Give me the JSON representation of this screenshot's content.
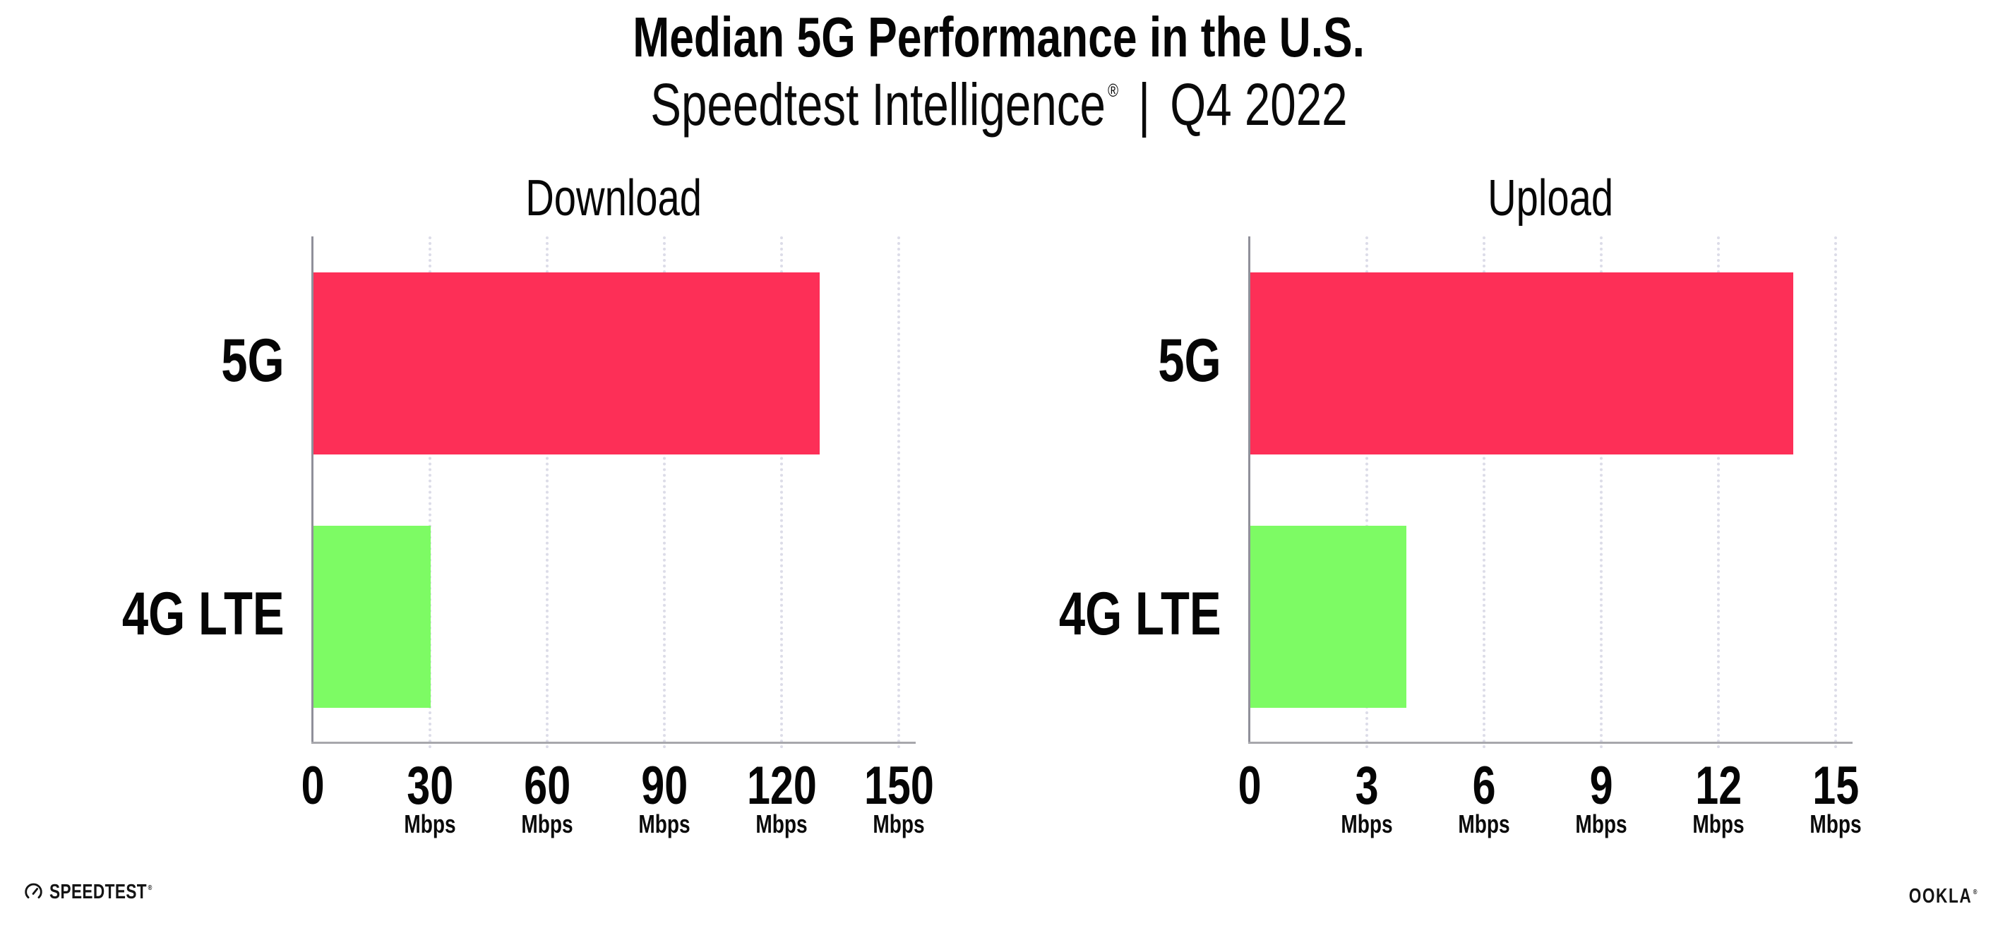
{
  "header": {
    "title": "Median 5G Performance in the U.S.",
    "subtitle_brand": "Speedtest Intelligence",
    "subtitle_reg": "®",
    "subtitle_separator": "|",
    "subtitle_period": "Q4 2022"
  },
  "chart_data": [
    {
      "type": "bar",
      "orientation": "horizontal",
      "title": "Download",
      "categories": [
        "5G",
        "4G LTE"
      ],
      "values": [
        129.5,
        30
      ],
      "unit": "Mbps",
      "xlim": [
        0,
        154
      ],
      "xticks": [
        0,
        30,
        60,
        90,
        120,
        150
      ],
      "xtick_unit_label": "Mbps",
      "bar_colors": [
        "#FD2F57",
        "#7DFB64"
      ],
      "grid": "dotted-vertical",
      "legend": "none"
    },
    {
      "type": "bar",
      "orientation": "horizontal",
      "title": "Upload",
      "categories": [
        "5G",
        "4G LTE"
      ],
      "values": [
        13.9,
        4
      ],
      "unit": "Mbps",
      "xlim": [
        0,
        15.4
      ],
      "xticks": [
        0,
        3,
        6,
        9,
        12,
        15
      ],
      "xtick_unit_label": "Mbps",
      "bar_colors": [
        "#FD2F57",
        "#7DFB64"
      ],
      "grid": "dotted-vertical",
      "legend": "none"
    }
  ],
  "footer": {
    "speedtest_wordmark": "SPEEDTEST",
    "speedtest_reg": "®",
    "speedtest_icon": "gauge-icon",
    "ookla_wordmark": "OOKLA",
    "ookla_reg": "®"
  },
  "colors": {
    "bar_5g": "#FD2F57",
    "bar_4g_lte": "#7DFB64",
    "axis_line": "#9B9BA1",
    "gridline_dots": "#DCDCE8",
    "text": "#050505",
    "background": "#FFFFFF"
  }
}
